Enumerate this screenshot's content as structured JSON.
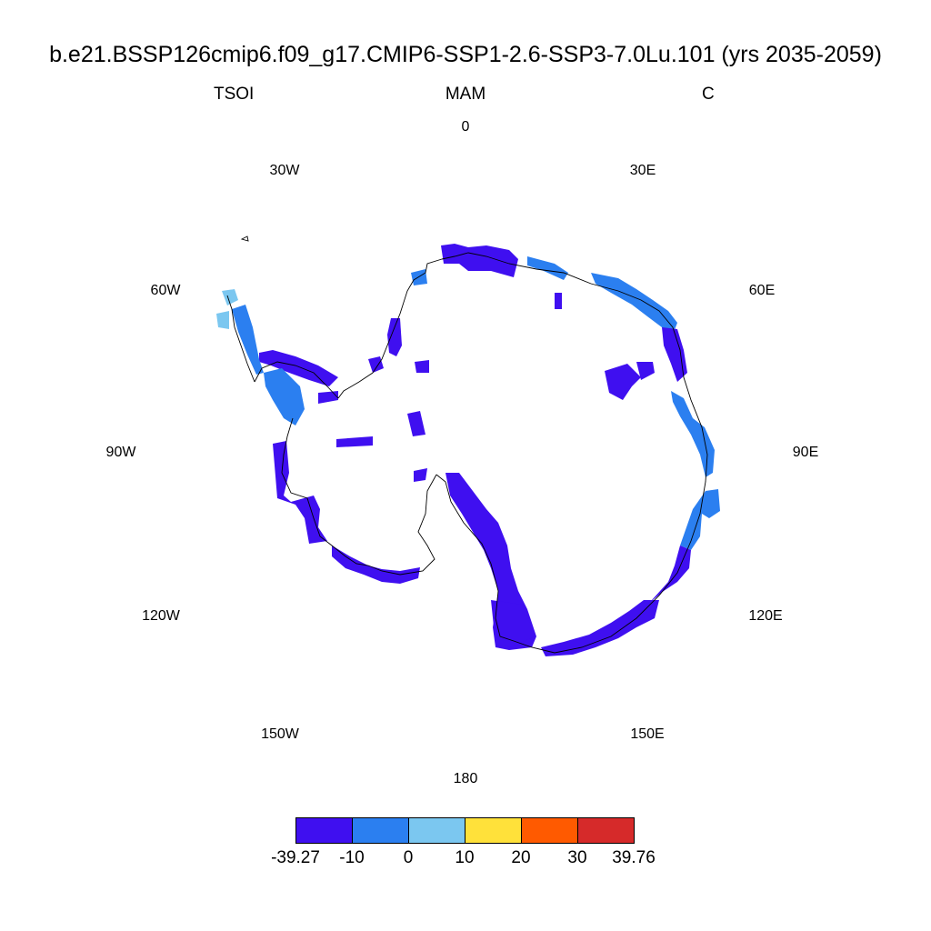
{
  "title": "b.e21.BSSP126cmip6.f09_g17.CMIP6-SSP1-2.6-SSP3-7.0Lu.101 (yrs 2035-2059)",
  "left_string": "TSOI",
  "center_string": "MAM",
  "right_string": "C",
  "longitude_labels": [
    "0",
    "30E",
    "60E",
    "90E",
    "120E",
    "150E",
    "180",
    "150W",
    "120W",
    "90W",
    "60W",
    "30W"
  ],
  "colorbar": {
    "labels": [
      "-39.27",
      "-10",
      "0",
      "10",
      "20",
      "30",
      "39.76"
    ],
    "colors": [
      "#3f0ff0",
      "#2b7ff0",
      "#7bc7f0",
      "#ffe13a",
      "#ff5a00",
      "#d62a2a"
    ]
  },
  "field_colors": {
    "below_minus10": "#3f0ff0",
    "minus10_to_0": "#2b7ff0",
    "0_to_10": "#7bc7f0"
  }
}
